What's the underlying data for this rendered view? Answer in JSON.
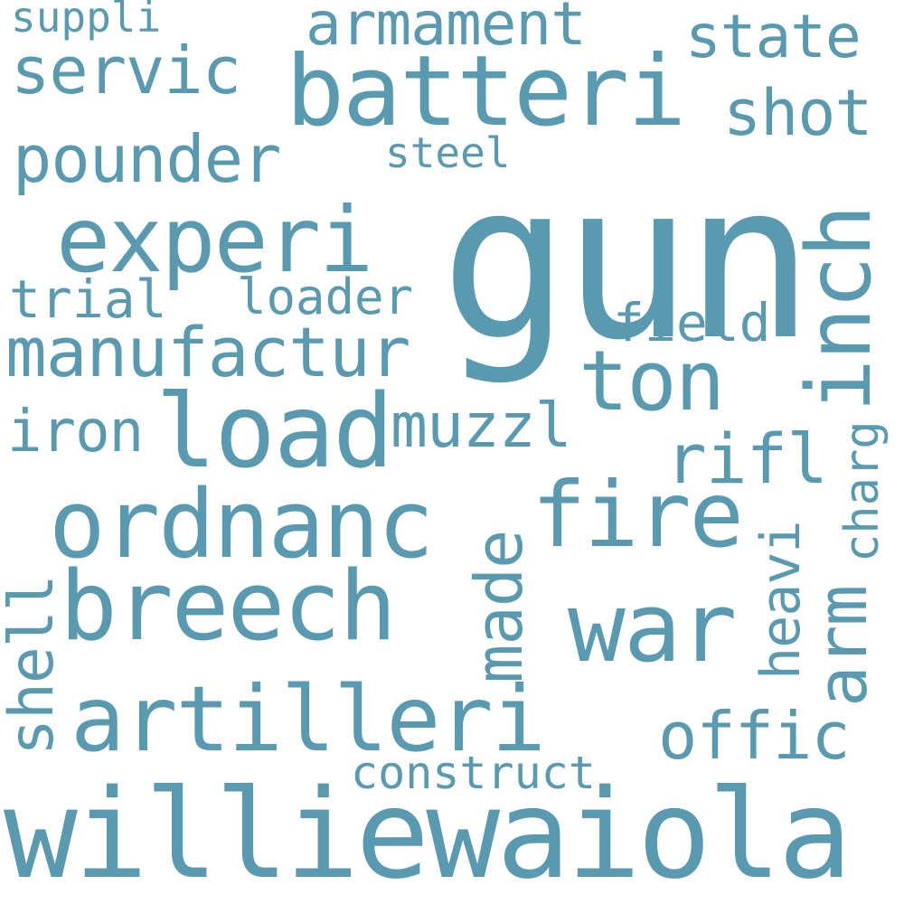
{
  "style": {
    "word_color": "#5a9ab0",
    "background": "#ffffff"
  },
  "words": {
    "gun": "gun",
    "williewaiola": "williewaiola",
    "batteri": "batteri",
    "experi": "experi",
    "ordnanc": "ordnanc",
    "breech": "breech",
    "artilleri": "artilleri",
    "load": "load",
    "fire": "fire",
    "war": "war",
    "ton": "ton",
    "inch": "inch",
    "manufactur": "manufactur",
    "pounder": "pounder",
    "servic": "servic",
    "armament": "armament",
    "state": "state",
    "shot": "shot",
    "steel": "steel",
    "suppli": "suppli",
    "trial": "trial",
    "loader": "loader",
    "field": "field",
    "iron": "iron",
    "muzzl": "muzzl",
    "rifl": "rifl",
    "made": "made",
    "arm": "arm",
    "heavi": "heavi",
    "charg": "charg",
    "offic": "offic",
    "shell": "shell",
    "construct": "construct"
  }
}
